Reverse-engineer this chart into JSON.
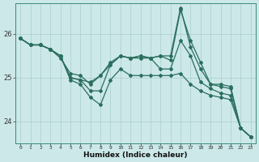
{
  "xlabel": "Humidex (Indice chaleur)",
  "bg_color": "#cce8e8",
  "line_color": "#2a6e5e",
  "grid_color": "#aacece",
  "x": [
    0,
    1,
    2,
    3,
    4,
    5,
    6,
    7,
    8,
    9,
    10,
    11,
    12,
    13,
    14,
    15,
    16,
    17,
    18,
    19,
    20,
    21,
    22,
    23
  ],
  "series1": [
    25.9,
    25.75,
    25.75,
    25.65,
    25.5,
    24.95,
    24.85,
    24.55,
    24.38,
    24.95,
    25.2,
    25.05,
    25.05,
    25.05,
    25.05,
    25.05,
    25.1,
    24.85,
    24.7,
    24.6,
    24.55,
    24.5,
    23.85,
    23.65
  ],
  "series2": [
    25.9,
    25.75,
    25.75,
    25.65,
    25.45,
    25.1,
    25.05,
    24.85,
    25.05,
    25.3,
    25.5,
    25.45,
    25.45,
    25.45,
    25.2,
    25.2,
    25.85,
    25.5,
    24.9,
    24.75,
    24.65,
    24.6,
    23.85,
    23.65
  ],
  "series3": [
    25.9,
    25.75,
    25.75,
    25.65,
    25.5,
    25.0,
    24.95,
    24.9,
    25.05,
    25.35,
    25.5,
    25.45,
    25.5,
    25.45,
    25.5,
    25.4,
    26.55,
    25.85,
    25.35,
    24.85,
    24.8,
    24.75,
    23.85,
    23.65
  ],
  "series4": [
    25.9,
    25.75,
    25.75,
    25.65,
    25.5,
    25.0,
    24.95,
    24.7,
    24.7,
    25.3,
    25.5,
    25.45,
    25.5,
    25.45,
    25.5,
    25.5,
    26.6,
    25.7,
    25.2,
    24.85,
    24.85,
    24.8,
    23.85,
    23.65
  ],
  "ylim": [
    23.5,
    26.7
  ],
  "yticks": [
    24,
    25,
    26
  ],
  "xlim": [
    -0.5,
    23.5
  ]
}
